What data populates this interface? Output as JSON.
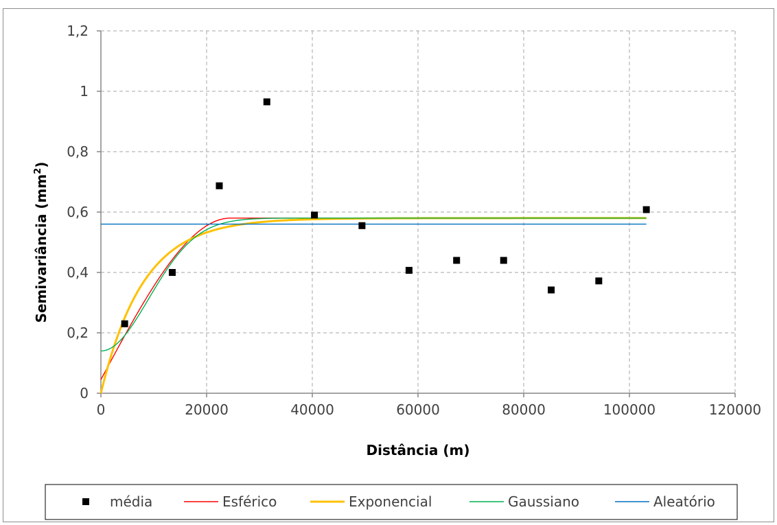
{
  "chart_data": {
    "type": "scatter",
    "xlabel": "Distância (m)",
    "ylabel_main": "Semivariância (mm",
    "ylabel_sup": "2",
    "ylabel_end": ")",
    "xlim": [
      0,
      120000
    ],
    "ylim": [
      0,
      1.2
    ],
    "x_ticks": [
      0,
      20000,
      40000,
      60000,
      80000,
      100000,
      120000
    ],
    "x_tick_labels": [
      "0",
      "20000",
      "40000",
      "60000",
      "80000",
      "100000",
      "120000"
    ],
    "y_ticks": [
      0,
      0.2,
      0.4,
      0.6,
      0.8,
      1.0,
      1.2
    ],
    "y_tick_labels": [
      "0",
      "0,2",
      "0,4",
      "0,6",
      "0,8",
      "1",
      "1,2"
    ],
    "grid": true,
    "legend_position": "bottom",
    "points_series": {
      "name": "média",
      "color": "#000000",
      "x": [
        4500,
        13500,
        22400,
        31400,
        40400,
        49400,
        58300,
        67300,
        76200,
        85200,
        94200,
        103200
      ],
      "y": [
        0.23,
        0.4,
        0.687,
        0.965,
        0.59,
        0.555,
        0.407,
        0.44,
        0.44,
        0.342,
        0.372,
        0.608
      ]
    },
    "line_series": [
      {
        "name": "Esférico",
        "color": "#ff0000",
        "model": "spherical",
        "nugget": 0.045,
        "sill": 0.58,
        "range": 24500,
        "x_max": 103200
      },
      {
        "name": "Exponencial",
        "color": "#ffc000",
        "model": "exponential",
        "nugget": 0.0,
        "sill": 0.58,
        "range": 8000,
        "x_max": 103200
      },
      {
        "name": "Gaussiano",
        "color": "#00b050",
        "model": "gaussian",
        "nugget": 0.14,
        "sill": 0.58,
        "range": 12800,
        "x_max": 103200
      },
      {
        "name": "Aleatório",
        "color": "#0070c0",
        "model": "constant",
        "value": 0.56,
        "x_max": 103200
      }
    ]
  }
}
